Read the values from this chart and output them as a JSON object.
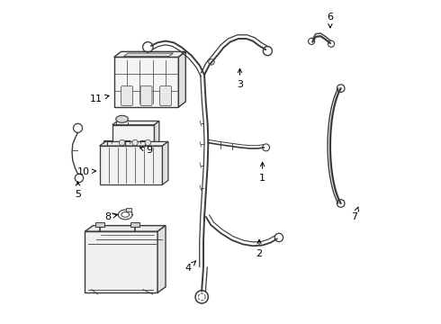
{
  "bg_color": "#ffffff",
  "line_color": "#3a3a3a",
  "label_color": "#000000",
  "figsize": [
    4.9,
    3.6
  ],
  "dpi": 100,
  "label_positions": {
    "1": [
      0.63,
      0.45,
      0.63,
      0.51
    ],
    "2": [
      0.62,
      0.215,
      0.62,
      0.27
    ],
    "3": [
      0.56,
      0.74,
      0.56,
      0.8
    ],
    "4": [
      0.4,
      0.17,
      0.43,
      0.2
    ],
    "5": [
      0.058,
      0.4,
      0.058,
      0.45
    ],
    "6": [
      0.84,
      0.95,
      0.84,
      0.905
    ],
    "7": [
      0.915,
      0.33,
      0.93,
      0.37
    ],
    "8": [
      0.15,
      0.33,
      0.19,
      0.338
    ],
    "9": [
      0.28,
      0.535,
      0.24,
      0.548
    ],
    "10": [
      0.075,
      0.47,
      0.125,
      0.473
    ],
    "11": [
      0.115,
      0.695,
      0.165,
      0.708
    ]
  }
}
